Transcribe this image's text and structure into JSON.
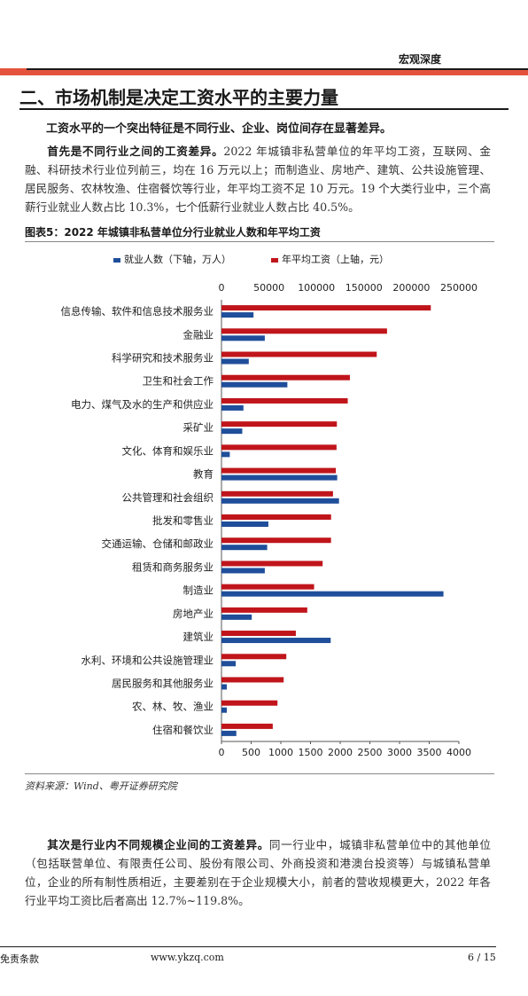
{
  "header": {
    "title": "宏观深度"
  },
  "section": {
    "title": "二、市场机制是决定工资水平的主要力量",
    "lead": "工资水平的一个突出特征是不同行业、企业、岗位间存在显著差异。"
  },
  "para1": {
    "bold": "首先是不同行业之间的工资差异。",
    "text": "2022 年城镇非私营单位的年平均工资，互联网、金融、科研技术行业位列前三，均在 16 万元以上；而制造业、房地产、建筑、公共设施管理、居民服务、农林牧渔、住宿餐饮等行业，年平均工资不足 10 万元。19 个大类行业中，三个高薪行业就业人数占比 10.3%，七个低薪行业就业人数占比 40.5%。"
  },
  "figure": {
    "title": "图表5：2022 年城镇非私营单位分行业就业人数和年平均工资",
    "source": "资料来源：Wind、粤开证券研究院"
  },
  "chart_data": {
    "type": "bar",
    "orientation": "horizontal",
    "legend_position": "top",
    "categories": [
      "信息传输、软件和信息技术服务业",
      "金融业",
      "科学研究和技术服务业",
      "卫生和社会工作",
      "电力、煤气及水的生产和供应业",
      "采矿业",
      "文化、体育和娱乐业",
      "教育",
      "公共管理和社会组织",
      "批发和零售业",
      "交通运输、仓储和邮政业",
      "租赁和商务服务业",
      "制造业",
      "房地产业",
      "建筑业",
      "水利、环境和公共设施管理业",
      "居民服务和其他服务业",
      "农、林、牧、渔业",
      "住宿和餐饮业"
    ],
    "series": [
      {
        "name": "就业人数（下轴，万人）",
        "color": "#1f4e9a",
        "axis": "bottom",
        "values": [
          540,
          730,
          460,
          1110,
          370,
          350,
          140,
          1950,
          1980,
          790,
          770,
          730,
          3740,
          510,
          1840,
          240,
          90,
          90,
          250
        ]
      },
      {
        "name": "年平均工资（上轴，元）",
        "color": "#c0151b",
        "axis": "top",
        "values": [
          220418,
          174341,
          163486,
          135222,
          132964,
          121522,
          121151,
          120422,
          117440,
          115408,
          115345,
          106500,
          97528,
          90346,
          78295,
          68256,
          65478,
          58976,
          53995
        ]
      }
    ],
    "top_axis": {
      "min": 0,
      "max": 250000,
      "ticks": [
        "0",
        "50000",
        "100000",
        "150000",
        "200000",
        "250000"
      ]
    },
    "bottom_axis": {
      "min": 0,
      "max": 4000,
      "ticks": [
        "0",
        "500",
        "1000",
        "1500",
        "2000",
        "2500",
        "3000",
        "3500",
        "4000"
      ]
    }
  },
  "para2": {
    "bold": "其次是行业内不同规模企业间的工资差异。",
    "text": "同一行业中，城镇非私营单位中的其他单位（包括联营单位、有限责任公司、股份有限公司、外商投资和港澳台投资等）与城镇私营单位，企业的所有制性质相近，主要差别在于企业规模大小，前者的营收规模更大，2022 年各行业平均工资比后者高出 12.7%~119.8%。"
  },
  "footer": {
    "left": "免责条款",
    "center": "www.ykzq.com",
    "right": "6 / 15"
  }
}
